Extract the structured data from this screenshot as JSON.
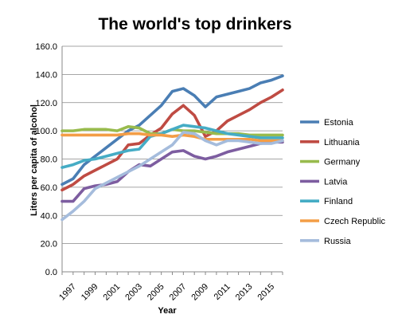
{
  "chart_data": {
    "type": "line",
    "title": "The world's top drinkers",
    "xlabel": "Year",
    "ylabel": "Liters per capita of alcohol",
    "ylim": [
      0,
      160
    ],
    "y_ticks": [
      "0.0",
      "20.0",
      "40.0",
      "60.0",
      "80.0",
      "100.0",
      "120.0",
      "140.0",
      "160.0"
    ],
    "x_tick_labels": [
      "1997",
      "1999",
      "2001",
      "2003",
      "2005",
      "2007",
      "2009",
      "2011",
      "2013",
      "2015"
    ],
    "x": [
      1996,
      1997,
      1998,
      1999,
      2000,
      2001,
      2002,
      2003,
      2004,
      2005,
      2006,
      2007,
      2008,
      2009,
      2010,
      2011,
      2012,
      2013,
      2014,
      2015,
      2016
    ],
    "grid": "horizontal",
    "legend_position": "right",
    "series": [
      {
        "name": "Estonia",
        "color": "#4a7eb4",
        "values": [
          62,
          66,
          76,
          82,
          88,
          94,
          100,
          104,
          111,
          118,
          128,
          130,
          125,
          117,
          124,
          126,
          128,
          130,
          134,
          136,
          139
        ]
      },
      {
        "name": "Lithuania",
        "color": "#bf4b43",
        "values": [
          58,
          62,
          68,
          72,
          76,
          80,
          90,
          91,
          97,
          102,
          112,
          118,
          111,
          96,
          100,
          107,
          111,
          115,
          120,
          124,
          129
        ]
      },
      {
        "name": "Germany",
        "color": "#98bb4d",
        "values": [
          100,
          100,
          101,
          101,
          101,
          100,
          103,
          102,
          98,
          98,
          101,
          100,
          100,
          99,
          98,
          98,
          98,
          97,
          97,
          97,
          97
        ]
      },
      {
        "name": "Latvia",
        "color": "#7d5da0",
        "values": [
          50,
          50,
          59,
          61,
          62,
          64,
          71,
          76,
          75,
          80,
          85,
          86,
          82,
          80,
          82,
          85,
          87,
          89,
          91,
          92,
          92
        ]
      },
      {
        "name": "Finland",
        "color": "#45acc5",
        "values": [
          74,
          76,
          79,
          80,
          82,
          84,
          86,
          87,
          96,
          98,
          101,
          104,
          103,
          102,
          100,
          98,
          97,
          96,
          95,
          95,
          95
        ]
      },
      {
        "name": "Czech Republic",
        "color": "#f39d46",
        "values": [
          97,
          97,
          97,
          97,
          97,
          97,
          98,
          98,
          97,
          97,
          96,
          97,
          96,
          94,
          94,
          94,
          94,
          94,
          93,
          93,
          93
        ]
      },
      {
        "name": "Russia",
        "color": "#a5bcdc",
        "values": [
          37,
          43,
          50,
          59,
          63,
          67,
          71,
          75,
          80,
          85,
          90,
          99,
          98,
          93,
          90,
          93,
          93,
          92,
          91,
          91,
          93
        ]
      }
    ]
  }
}
